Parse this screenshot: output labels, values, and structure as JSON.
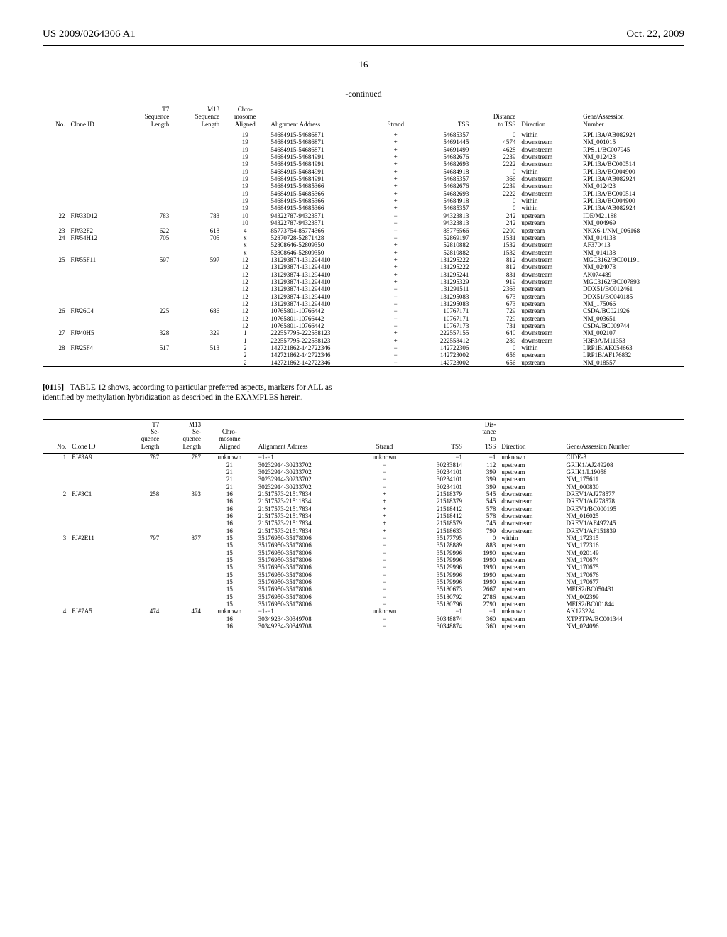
{
  "header": {
    "left": "US 2009/0264306 A1",
    "right": "Oct. 22, 2009"
  },
  "pageNumber": "16",
  "continuedLabel": "-continued",
  "table1": {
    "columns": [
      "No.",
      "Clone ID",
      "T7\nSequence\nLength",
      "M13\nSequence\nLength",
      "Chro-\nmosome\nAligned",
      "Alignment Address",
      "Strand",
      "TSS",
      "Distance\nto TSS",
      "Direction",
      "Gene/Assession\nNumber"
    ],
    "rows": [
      [
        "",
        "",
        "",
        "",
        "19",
        "54684915-54686871",
        "+",
        "54685357",
        "0",
        "within",
        "RPL13A/AB082924"
      ],
      [
        "",
        "",
        "",
        "",
        "19",
        "54684915-54686871",
        "+",
        "54691445",
        "4574",
        "downstream",
        "NM_001015"
      ],
      [
        "",
        "",
        "",
        "",
        "19",
        "54684915-54686871",
        "+",
        "54691499",
        "4628",
        "downstream",
        "RPS11/BC007945"
      ],
      [
        "",
        "",
        "",
        "",
        "19",
        "54684915-54684991",
        "+",
        "54682676",
        "2239",
        "downstream",
        "NM_012423"
      ],
      [
        "",
        "",
        "",
        "",
        "19",
        "54684915-54684991",
        "+",
        "54682693",
        "2222",
        "downstream",
        "RPL13A/BC000514"
      ],
      [
        "",
        "",
        "",
        "",
        "19",
        "54684915-54684991",
        "+",
        "54684918",
        "0",
        "within",
        "RPL13A/BC004900"
      ],
      [
        "",
        "",
        "",
        "",
        "19",
        "54684915-54684991",
        "+",
        "54685357",
        "366",
        "downstream",
        "RPL13A/AB082924"
      ],
      [
        "",
        "",
        "",
        "",
        "19",
        "54684915-54685366",
        "+",
        "54682676",
        "2239",
        "downstream",
        "NM_012423"
      ],
      [
        "",
        "",
        "",
        "",
        "19",
        "54684915-54685366",
        "+",
        "54682693",
        "2222",
        "downstream",
        "RPL13A/BC000514"
      ],
      [
        "",
        "",
        "",
        "",
        "19",
        "54684915-54685366",
        "+",
        "54684918",
        "0",
        "within",
        "RPL13A/BC004900"
      ],
      [
        "",
        "",
        "",
        "",
        "19",
        "54684915-54685366",
        "+",
        "54685357",
        "0",
        "within",
        "RPL13A/AB082924"
      ],
      [
        "22",
        "FJ#33D12",
        "783",
        "783",
        "10",
        "94322787-94323571",
        "−",
        "94323813",
        "242",
        "upstream",
        "IDE/M21188"
      ],
      [
        "",
        "",
        "",
        "",
        "10",
        "94322787-94323571",
        "−",
        "94323813",
        "242",
        "upstream",
        "NM_004969"
      ],
      [
        "23",
        "FJ#32F2",
        "622",
        "618",
        "4",
        "85773754-85774366",
        "−",
        "85776566",
        "2200",
        "upstream",
        "NKX6-1/NM_006168"
      ],
      [
        "24",
        "FJ#54H12",
        "705",
        "705",
        "x",
        "52870728-52871428",
        "−",
        "52869197",
        "1531",
        "upstream",
        "NM_014138"
      ],
      [
        "",
        "",
        "",
        "",
        "x",
        "52808646-52809350",
        "+",
        "52810882",
        "1532",
        "downstream",
        "AF370413"
      ],
      [
        "",
        "",
        "",
        "",
        "x",
        "52808646-52809350",
        "+",
        "52810882",
        "1532",
        "downstream",
        "NM_014138"
      ],
      [
        "25",
        "FJ#55F11",
        "597",
        "597",
        "12",
        "131293874-131294410",
        "+",
        "131295222",
        "812",
        "downstream",
        "MGC3162/BC001191"
      ],
      [
        "",
        "",
        "",
        "",
        "12",
        "131293874-131294410",
        "+",
        "131295222",
        "812",
        "downstream",
        "NM_024078"
      ],
      [
        "",
        "",
        "",
        "",
        "12",
        "131293874-131294410",
        "+",
        "131295241",
        "831",
        "downstream",
        "AK074489"
      ],
      [
        "",
        "",
        "",
        "",
        "12",
        "131293874-131294410",
        "+",
        "131295329",
        "919",
        "downstream",
        "MGC3162/BC007893"
      ],
      [
        "",
        "",
        "",
        "",
        "12",
        "131293874-131294410",
        "−",
        "131291511",
        "2363",
        "upstream",
        "DDX51/BC012461"
      ],
      [
        "",
        "",
        "",
        "",
        "12",
        "131293874-131294410",
        "−",
        "131295083",
        "673",
        "upstream",
        "DDX51/BC040185"
      ],
      [
        "",
        "",
        "",
        "",
        "12",
        "131293874-131294410",
        "−",
        "131295083",
        "673",
        "upstream",
        "NM_175066"
      ],
      [
        "26",
        "FJ#26C4",
        "225",
        "686",
        "12",
        "10765801-10766442",
        "−",
        "10767171",
        "729",
        "upstream",
        "CSDA/BC021926"
      ],
      [
        "",
        "",
        "",
        "",
        "12",
        "10765801-10766442",
        "−",
        "10767171",
        "729",
        "upstream",
        "NM_003651"
      ],
      [
        "",
        "",
        "",
        "",
        "12",
        "10765801-10766442",
        "−",
        "10767173",
        "731",
        "upstream",
        "CSDA/BC009744"
      ],
      [
        "27",
        "FJ#40H5",
        "328",
        "329",
        "1",
        "222557795-222558123",
        "+",
        "222557155",
        "640",
        "downstream",
        "NM_002107"
      ],
      [
        "",
        "",
        "",
        "",
        "1",
        "222557795-222558123",
        "+",
        "222558412",
        "289",
        "downstream",
        "H3F3A/M11353"
      ],
      [
        "28",
        "FJ#25F4",
        "517",
        "513",
        "2",
        "142721862-142722346",
        "−",
        "142722306",
        "0",
        "within",
        "LRP1B/AK054663"
      ],
      [
        "",
        "",
        "",
        "",
        "2",
        "142721862-142722346",
        "−",
        "142723002",
        "656",
        "upstream",
        "LRP1B/AF176832"
      ],
      [
        "",
        "",
        "",
        "",
        "2",
        "142721862-142722346",
        "−",
        "142723002",
        "656",
        "upstream",
        "NM_018557"
      ]
    ]
  },
  "paragraph": {
    "num": "[0115]",
    "text": "TABLE 12 shows, according to particular preferred aspects, markers for ALL as identified by methylation hybridization as described in the EXAMPLES herein."
  },
  "table2": {
    "columns": [
      "No.",
      "Clone ID",
      "T7\nSe-\nquence\nLength",
      "M13\nSe-\nquence\nLength",
      "Chro-\nmosome\nAligned",
      "Alignment Address",
      "Strand",
      "TSS",
      "Dis-\ntance\nto\nTSS",
      "Direction",
      "Gene/Assession Number"
    ],
    "rows": [
      [
        "1",
        "FJ#3A9",
        "787",
        "787",
        "unknown",
        "−1-−1",
        "unknown",
        "−1",
        "−1",
        "unknown",
        "CIDE-3"
      ],
      [
        "",
        "",
        "",
        "",
        "21",
        "30232914-30233702",
        "−",
        "30233814",
        "112",
        "upstream",
        "GRIK1/AJ249208"
      ],
      [
        "",
        "",
        "",
        "",
        "21",
        "30232914-30233702",
        "−",
        "30234101",
        "399",
        "upstream",
        "GRIK1/L19058"
      ],
      [
        "",
        "",
        "",
        "",
        "21",
        "30232914-30233702",
        "−",
        "30234101",
        "399",
        "upstream",
        "NM_175611"
      ],
      [
        "",
        "",
        "",
        "",
        "21",
        "30232914-30233702",
        "−",
        "30234101",
        "399",
        "upstream",
        "NM_000830"
      ],
      [
        "2",
        "FJ#3C1",
        "258",
        "393",
        "16",
        "21517573-21517834",
        "+",
        "21518379",
        "545",
        "downstream",
        "DREV1/AJ278577"
      ],
      [
        "",
        "",
        "",
        "",
        "16",
        "21517573-21511834",
        "+",
        "21518379",
        "545",
        "downstream",
        "DREV1/AJ278578"
      ],
      [
        "",
        "",
        "",
        "",
        "16",
        "21517573-21517834",
        "+",
        "21518412",
        "578",
        "downstream",
        "DREV1/BC000195"
      ],
      [
        "",
        "",
        "",
        "",
        "16",
        "21517573-21517834",
        "+",
        "21518412",
        "578",
        "downstream",
        "NM_016025"
      ],
      [
        "",
        "",
        "",
        "",
        "16",
        "21517573-21517834",
        "+",
        "21518579",
        "745",
        "downstream",
        "DREV1/AF497245"
      ],
      [
        "",
        "",
        "",
        "",
        "16",
        "21517573-21517834",
        "+",
        "21518633",
        "799",
        "downstream",
        "DREV1/AF151839"
      ],
      [
        "3",
        "FJ#2E11",
        "797",
        "877",
        "15",
        "35176950-35178006",
        "−",
        "35177795",
        "0",
        "within",
        "NM_172315"
      ],
      [
        "",
        "",
        "",
        "",
        "15",
        "35176950-35178006",
        "−",
        "35178889",
        "883",
        "upstream",
        "NM_172316"
      ],
      [
        "",
        "",
        "",
        "",
        "15",
        "35176950-35178006",
        "−",
        "35179996",
        "1990",
        "upstream",
        "NM_020149"
      ],
      [
        "",
        "",
        "",
        "",
        "15",
        "35176950-35178006",
        "−",
        "35179996",
        "1990",
        "upstream",
        "NM_170674"
      ],
      [
        "",
        "",
        "",
        "",
        "15",
        "35176950-35178006",
        "−",
        "35179996",
        "1990",
        "upstream",
        "NM_170675"
      ],
      [
        "",
        "",
        "",
        "",
        "15",
        "35176950-35178006",
        "−",
        "35179996",
        "1990",
        "upstream",
        "NM_170676"
      ],
      [
        "",
        "",
        "",
        "",
        "15",
        "35176950-35178006",
        "−",
        "35179996",
        "1990",
        "upstream",
        "NM_170677"
      ],
      [
        "",
        "",
        "",
        "",
        "15",
        "35176950-35178006",
        "−",
        "35180673",
        "2667",
        "upstream",
        "MEIS2/BC050431"
      ],
      [
        "",
        "",
        "",
        "",
        "15",
        "35176950-35178006",
        "−",
        "35180792",
        "2786",
        "upstream",
        "NM_002399"
      ],
      [
        "",
        "",
        "",
        "",
        "15",
        "35176950-35178006",
        "−",
        "35180796",
        "2790",
        "upstream",
        "MEIS2/BC001844"
      ],
      [
        "4",
        "FJ#7A5",
        "474",
        "474",
        "unknown",
        "−1-−1",
        "unknown",
        "−1",
        "−1",
        "unknown",
        "AK123224"
      ],
      [
        "",
        "",
        "",
        "",
        "16",
        "30349234-30349708",
        "−",
        "30348874",
        "360",
        "upstream",
        "XTP3TPA/BC001344"
      ],
      [
        "",
        "",
        "",
        "",
        "16",
        "30349234-30349708",
        "−",
        "30348874",
        "360",
        "upstream",
        "NM_024096"
      ]
    ]
  }
}
